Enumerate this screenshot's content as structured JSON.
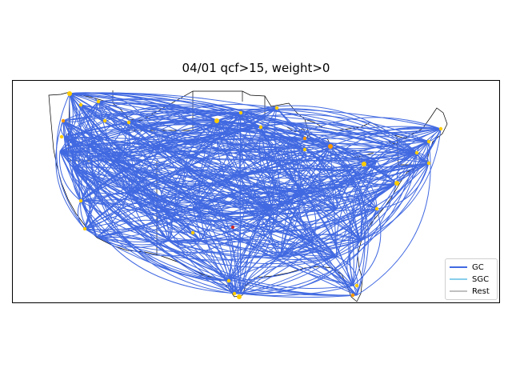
{
  "title": "04/01 qcf>15, weight>0",
  "legend": [
    {
      "label": "GC",
      "color": "#4169e1"
    },
    {
      "label": "SGC",
      "color": "#87ceeb"
    },
    {
      "label": "Rest",
      "color": "#c0c0c0"
    }
  ],
  "colors": {
    "route": "#4169e1",
    "airport": "#ffcc00",
    "airport_alt": "#ff9900",
    "hub_marker": "#cc2222",
    "coastline": "#000000"
  }
}
